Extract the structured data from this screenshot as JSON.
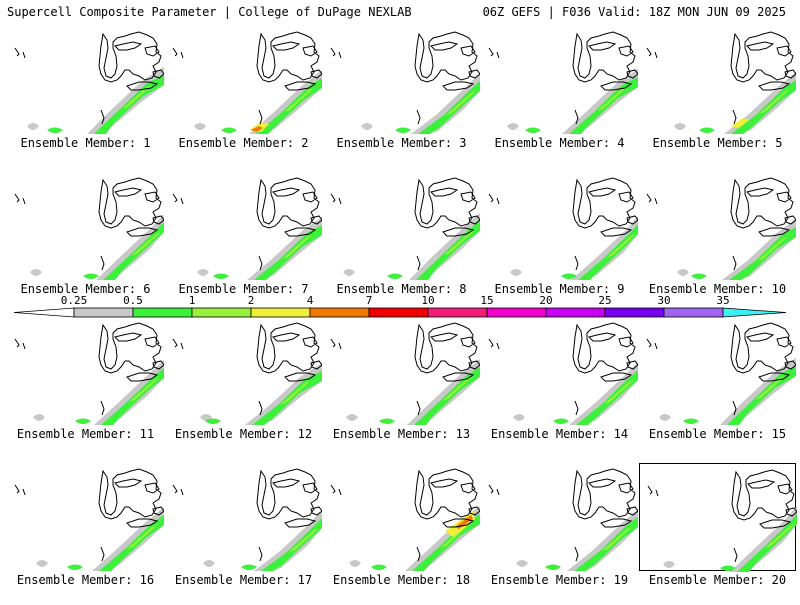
{
  "header": {
    "title_left": "Supercell Composite Parameter | College of DuPage NEXLAB",
    "title_right": "06Z GEFS | F036 Valid: 18Z MON JUN 09 2025"
  },
  "panels": [
    {
      "label": "Ensemble Member: 1"
    },
    {
      "label": "Ensemble Member: 2"
    },
    {
      "label": "Ensemble Member: 3"
    },
    {
      "label": "Ensemble Member: 4"
    },
    {
      "label": "Ensemble Member: 5"
    },
    {
      "label": "Ensemble Member: 6"
    },
    {
      "label": "Ensemble Member: 7"
    },
    {
      "label": "Ensemble Member: 8"
    },
    {
      "label": "Ensemble Member: 9"
    },
    {
      "label": "Ensemble Member: 10"
    },
    {
      "label": "Ensemble Member: 11"
    },
    {
      "label": "Ensemble Member: 12"
    },
    {
      "label": "Ensemble Member: 13"
    },
    {
      "label": "Ensemble Member: 14"
    },
    {
      "label": "Ensemble Member: 15"
    },
    {
      "label": "Ensemble Member: 16"
    },
    {
      "label": "Ensemble Member: 17"
    },
    {
      "label": "Ensemble Member: 18"
    },
    {
      "label": "Ensemble Member: 19"
    },
    {
      "label": "Ensemble Member: 20"
    }
  ],
  "legend": {
    "ticks": [
      "0.25",
      "0.5",
      "1",
      "2",
      "4",
      "7",
      "10",
      "15",
      "20",
      "25",
      "30",
      "35"
    ],
    "colors": [
      "#c8c8c8",
      "#3cf03c",
      "#96f03c",
      "#f0f03c",
      "#f07800",
      "#f00000",
      "#f01e78",
      "#f000c8",
      "#c800f0",
      "#7800f0",
      "#a064f0",
      "#3cf0f0"
    ],
    "underflow_color": "#ffffff",
    "overflow_color": "#3cf0f0"
  },
  "colors": {
    "light_gray": "#c8c8c8",
    "green": "#3cf03c",
    "light_green": "#96f03c",
    "yellow": "#f0f03c",
    "orange": "#f07800",
    "red": "#f00000"
  }
}
